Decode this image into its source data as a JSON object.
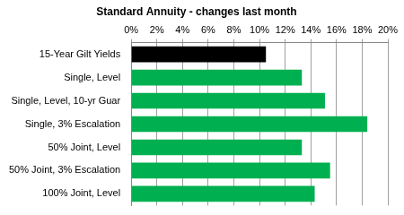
{
  "chart_data": {
    "type": "bar",
    "title": "Standard Annuity - changes last month",
    "orientation": "horizontal",
    "categories": [
      "15-Year Gilt Yields",
      "Single, Level",
      "Single, Level, 10-yr Guar",
      "Single, 3% Escalation",
      "50% Joint, Level",
      "50% Joint, 3% Escalation",
      "100% Joint, Level"
    ],
    "values": [
      10.5,
      13.3,
      15.1,
      18.4,
      13.3,
      15.5,
      14.3
    ],
    "colors": [
      "#000000",
      "#00b050",
      "#00b050",
      "#00b050",
      "#00b050",
      "#00b050",
      "#00b050"
    ],
    "xlim": [
      0,
      20
    ],
    "xticks": [
      {
        "value": 0,
        "label": "0%"
      },
      {
        "value": 2,
        "label": "2%"
      },
      {
        "value": 4,
        "label": "4%"
      },
      {
        "value": 6,
        "label": "6%"
      },
      {
        "value": 8,
        "label": "8%"
      },
      {
        "value": 10,
        "label": "10%"
      },
      {
        "value": 12,
        "label": "12%"
      },
      {
        "value": 14,
        "label": "14%"
      },
      {
        "value": 16,
        "label": "16%"
      },
      {
        "value": 18,
        "label": "18%"
      },
      {
        "value": 20,
        "label": "20%"
      }
    ],
    "grid": true
  }
}
